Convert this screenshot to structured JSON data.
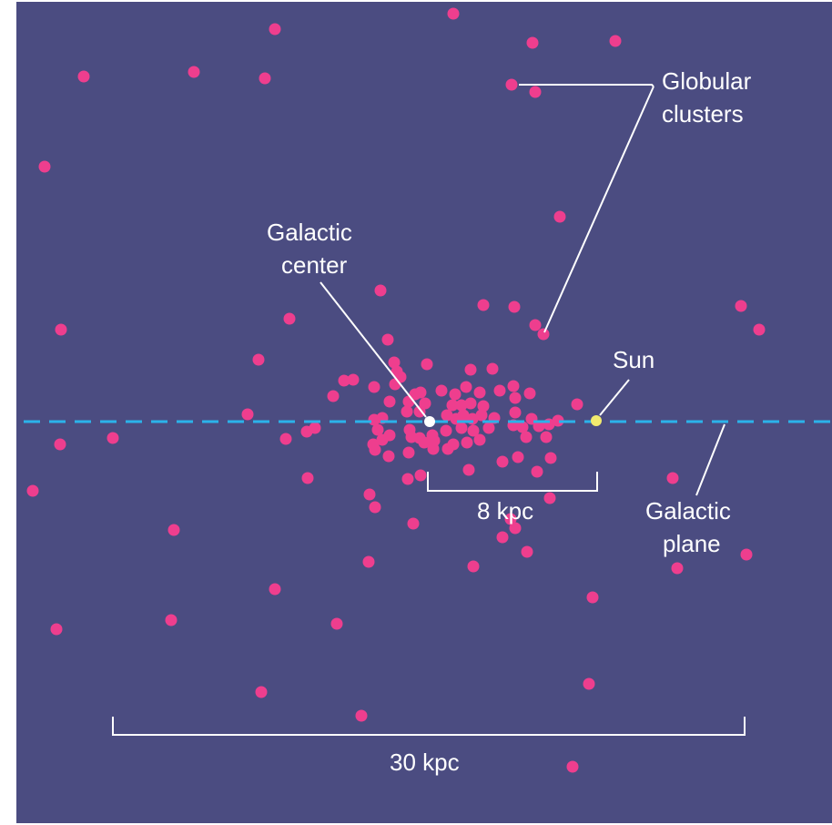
{
  "colors": {
    "background": "#4b4c81",
    "cluster": "#ee3e8e",
    "plane": "#2bb3ea",
    "center": "#ffffff",
    "sun": "#f2ea6e",
    "lines": "#ffffff"
  },
  "labels": {
    "globular_clusters_line1": "Globular",
    "globular_clusters_line2": "clusters",
    "galactic_center_line1": "Galactic",
    "galactic_center_line2": "center",
    "sun": "Sun",
    "galactic_plane_line1": "Galactic",
    "galactic_plane_line2": "plane",
    "scale_small": "8 kpc",
    "scale_large": "30 kpc"
  },
  "icons": {
    "clusters": "globular-cluster-dot",
    "center": "galactic-center-dot",
    "sun": "sun-dot"
  }
}
